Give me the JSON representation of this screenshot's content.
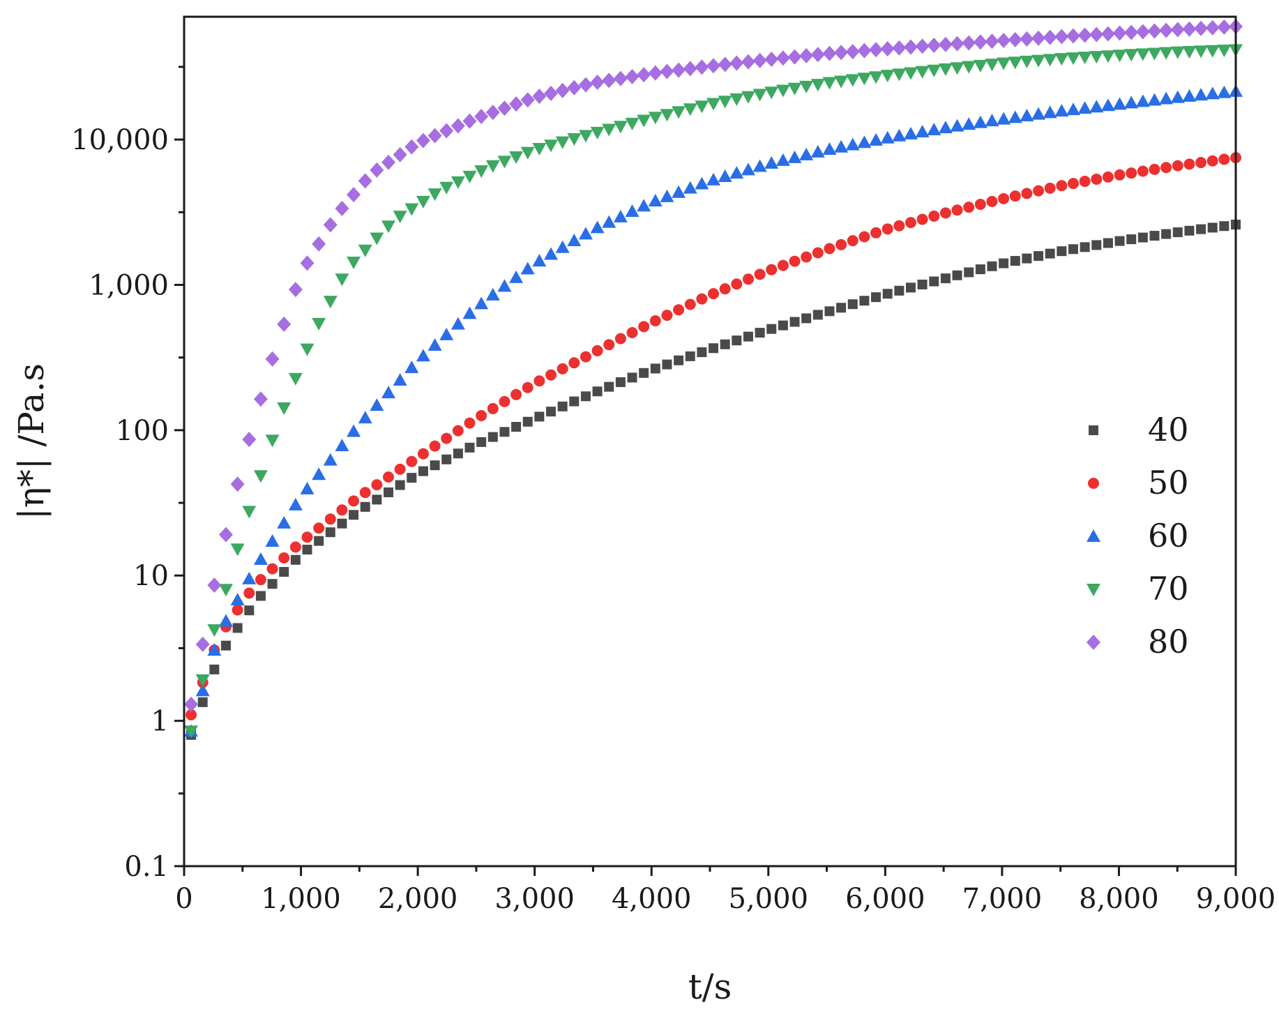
{
  "chart_data": {
    "type": "scatter",
    "title": "",
    "xlabel": "t/s",
    "ylabel": "|η*| /Pa.s",
    "xlim": [
      0,
      9000
    ],
    "ylim": [
      0.1,
      70000
    ],
    "yscale": "log",
    "x_ticks": [
      0,
      1000,
      2000,
      3000,
      4000,
      5000,
      6000,
      7000,
      8000,
      9000
    ],
    "x_tick_labels": [
      "0",
      "1,000",
      "2,000",
      "3,000",
      "4,000",
      "5,000",
      "6,000",
      "7,000",
      "8,000",
      "9,000"
    ],
    "y_ticks": [
      0.1,
      1,
      10,
      100,
      1000,
      10000
    ],
    "y_tick_labels": [
      "0.1",
      "1",
      "10",
      "100",
      "1,000",
      "10,000"
    ],
    "legend_position": "right",
    "series": [
      {
        "name": "40",
        "marker": "square",
        "color": "#4a4a4a",
        "control_points": [
          [
            60,
            0.8
          ],
          [
            300,
            2.8
          ],
          [
            600,
            6.5
          ],
          [
            1000,
            14
          ],
          [
            1500,
            28
          ],
          [
            2000,
            50
          ],
          [
            2500,
            80
          ],
          [
            3000,
            120
          ],
          [
            3500,
            180
          ],
          [
            4000,
            260
          ],
          [
            4500,
            360
          ],
          [
            5000,
            490
          ],
          [
            5500,
            650
          ],
          [
            6000,
            860
          ],
          [
            6500,
            1100
          ],
          [
            7000,
            1400
          ],
          [
            7500,
            1700
          ],
          [
            8000,
            2000
          ],
          [
            8500,
            2300
          ],
          [
            9000,
            2600
          ]
        ]
      },
      {
        "name": "50",
        "marker": "circle",
        "color": "#ec3030",
        "control_points": [
          [
            60,
            1.1
          ],
          [
            300,
            3.8
          ],
          [
            600,
            8.5
          ],
          [
            1000,
            17
          ],
          [
            1500,
            35
          ],
          [
            2000,
            65
          ],
          [
            2500,
            120
          ],
          [
            3000,
            210
          ],
          [
            3500,
            340
          ],
          [
            4000,
            550
          ],
          [
            4500,
            850
          ],
          [
            5000,
            1250
          ],
          [
            5500,
            1750
          ],
          [
            6000,
            2400
          ],
          [
            6500,
            3100
          ],
          [
            7000,
            3900
          ],
          [
            7500,
            4800
          ],
          [
            8000,
            5700
          ],
          [
            8500,
            6600
          ],
          [
            9000,
            7500
          ]
        ]
      },
      {
        "name": "60",
        "marker": "triangle-up",
        "color": "#2a6ee6",
        "control_points": [
          [
            60,
            0.85
          ],
          [
            300,
            4
          ],
          [
            600,
            11
          ],
          [
            1000,
            35
          ],
          [
            1500,
            110
          ],
          [
            2000,
            300
          ],
          [
            2500,
            700
          ],
          [
            3000,
            1400
          ],
          [
            3500,
            2400
          ],
          [
            4000,
            3700
          ],
          [
            4500,
            5200
          ],
          [
            5000,
            6800
          ],
          [
            5500,
            8500
          ],
          [
            6000,
            10200
          ],
          [
            6500,
            12000
          ],
          [
            7000,
            13800
          ],
          [
            7500,
            15700
          ],
          [
            8000,
            17500
          ],
          [
            8500,
            19500
          ],
          [
            9000,
            21500
          ]
        ]
      },
      {
        "name": "70",
        "marker": "triangle-down",
        "color": "#3da860",
        "control_points": [
          [
            60,
            0.85
          ],
          [
            250,
            4
          ],
          [
            500,
            20
          ],
          [
            800,
            110
          ],
          [
            1100,
            450
          ],
          [
            1400,
            1300
          ],
          [
            1800,
            2800
          ],
          [
            2200,
            4500
          ],
          [
            2600,
            6400
          ],
          [
            3000,
            8500
          ],
          [
            3500,
            11000
          ],
          [
            4000,
            14000
          ],
          [
            4500,
            17500
          ],
          [
            5000,
            21000
          ],
          [
            5500,
            24500
          ],
          [
            6000,
            27500
          ],
          [
            6500,
            30500
          ],
          [
            7000,
            33500
          ],
          [
            7500,
            36000
          ],
          [
            8000,
            38000
          ],
          [
            8500,
            40000
          ],
          [
            9000,
            41500
          ]
        ]
      },
      {
        "name": "80",
        "marker": "diamond",
        "color": "#a66ee0",
        "control_points": [
          [
            60,
            1.3
          ],
          [
            250,
            8
          ],
          [
            500,
            60
          ],
          [
            750,
            300
          ],
          [
            1000,
            1200
          ],
          [
            1300,
            3000
          ],
          [
            1600,
            5800
          ],
          [
            2000,
            9500
          ],
          [
            2500,
            14000
          ],
          [
            3000,
            19500
          ],
          [
            3500,
            24500
          ],
          [
            4000,
            28500
          ],
          [
            4500,
            32000
          ],
          [
            5000,
            35500
          ],
          [
            5500,
            39000
          ],
          [
            6000,
            42000
          ],
          [
            6500,
            45000
          ],
          [
            7000,
            48000
          ],
          [
            7500,
            51000
          ],
          [
            8000,
            54000
          ],
          [
            8500,
            57000
          ],
          [
            9000,
            60000
          ]
        ]
      }
    ]
  }
}
